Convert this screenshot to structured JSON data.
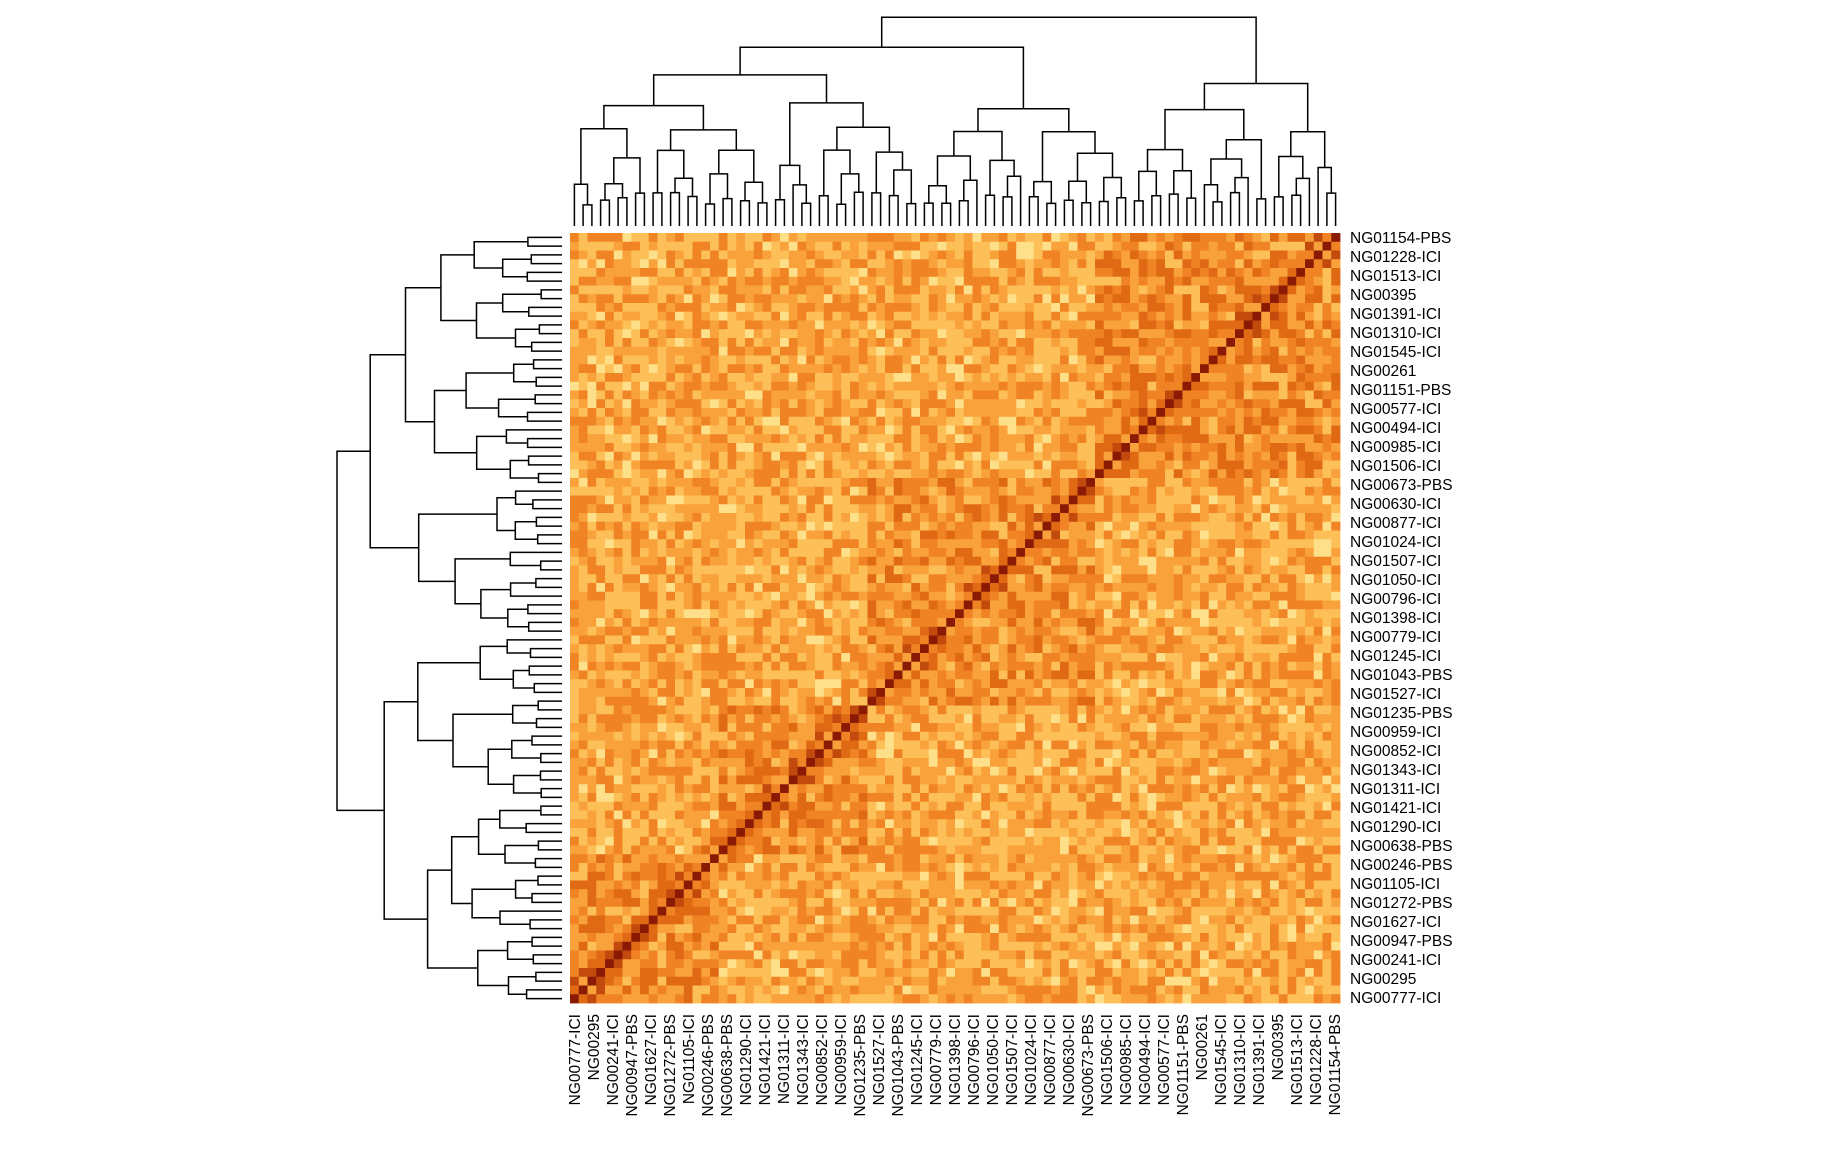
{
  "chart_data": {
    "type": "heatmap",
    "title": "",
    "xlabel": "",
    "ylabel": "",
    "n_samples": 88,
    "matrix": "symmetric sample correlation matrix; diagonal = maximum (dark red), off-diagonal values shown in pale yellow to orange",
    "diagonal_value": 1.0,
    "color_scale": [
      "#fff6c4",
      "#ffe08a",
      "#fdbf57",
      "#f9a13a",
      "#f08424",
      "#e06a14",
      "#c24a0c",
      "#8b1a05"
    ],
    "legend": "none",
    "grid": false,
    "dendrograms": [
      "top",
      "left"
    ],
    "row_labels": [
      "NG01154-PBS",
      "NG01228-ICI",
      "NG01513-ICI",
      "NG00395",
      "NG01391-ICI",
      "NG01310-ICI",
      "NG01545-ICI",
      "NG00261",
      "NG01151-PBS",
      "NG00577-ICI",
      "NG00494-ICI",
      "NG00985-ICI",
      "NG01506-ICI",
      "NG00673-PBS",
      "NG00630-ICI",
      "NG00877-ICI",
      "NG01024-ICI",
      "NG01507-ICI",
      "NG01050-ICI",
      "NG00796-ICI",
      "NG01398-ICI",
      "NG00779-ICI",
      "NG01245-ICI",
      "NG01043-PBS",
      "NG01527-ICI",
      "NG01235-PBS",
      "NG00959-ICI",
      "NG00852-ICI",
      "NG01343-ICI",
      "NG01311-ICI",
      "NG01421-ICI",
      "NG01290-ICI",
      "NG00638-PBS",
      "NG00246-PBS",
      "NG01105-ICI",
      "NG01272-PBS",
      "NG01627-ICI",
      "NG00947-PBS",
      "NG00241-ICI",
      "NG00295",
      "NG00777-ICI"
    ],
    "col_labels": [
      "NG00777-ICI",
      "NG00295",
      "NG00241-ICI",
      "NG00947-PBS",
      "NG01627-ICI",
      "NG01272-PBS",
      "NG01105-ICI",
      "NG00246-PBS",
      "NG00638-PBS",
      "NG01290-ICI",
      "NG01421-ICI",
      "NG01311-ICI",
      "NG01343-ICI",
      "NG00852-ICI",
      "NG00959-ICI",
      "NG01235-PBS",
      "NG01527-ICI",
      "NG01043-PBS",
      "NG01245-ICI",
      "NG00779-ICI",
      "NG01398-ICI",
      "NG00796-ICI",
      "NG01050-ICI",
      "NG01507-ICI",
      "NG01024-ICI",
      "NG00877-ICI",
      "NG00630-ICI",
      "NG00673-PBS",
      "NG01506-ICI",
      "NG00985-ICI",
      "NG00494-ICI",
      "NG00577-ICI",
      "NG01151-PBS",
      "NG00261",
      "NG01545-ICI",
      "NG01310-ICI",
      "NG01391-ICI",
      "NG00395",
      "NG01513-ICI",
      "NG01228-ICI",
      "NG01154-PBS"
    ]
  }
}
